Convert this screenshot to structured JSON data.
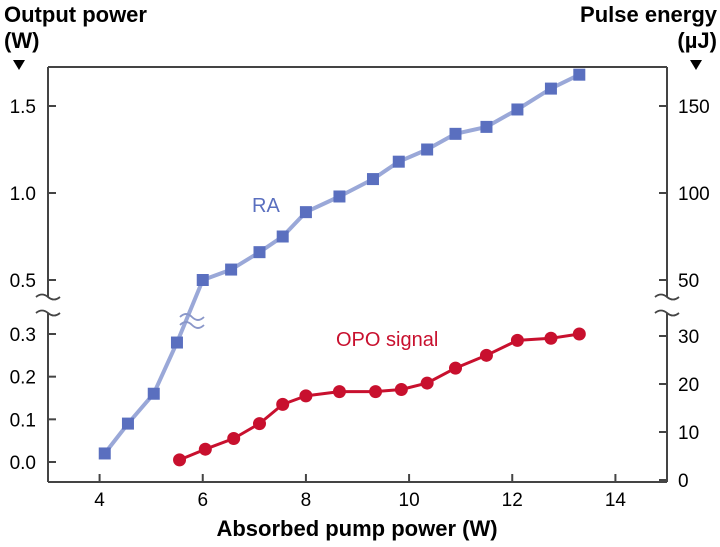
{
  "chart_data": {
    "type": "line",
    "ylabel_left": [
      "Output power",
      "(W)"
    ],
    "ylabel_right": [
      "Pulse energy",
      "(µJ)"
    ],
    "xlabel": "Absorbed pump power (W)",
    "x_ticks": [
      "4",
      "6",
      "8",
      "10",
      "12",
      "14"
    ],
    "xlim": [
      3,
      15
    ],
    "y_left_ticks_lower": [
      "0.0",
      "0.1",
      "0.2",
      "0.3"
    ],
    "y_left_ticks_upper": [
      "0.5",
      "1.0",
      "1.5"
    ],
    "y_right_ticks": [
      "0",
      "10",
      "20",
      "30",
      "50",
      "100",
      "150"
    ],
    "y_axis_break": "between 0.3 W and 0.5 W (≈35 µJ and 50 µJ)",
    "series": [
      {
        "name": "RA",
        "color": "#5a6fbf",
        "line_color": "#9aa8d8",
        "marker": "square",
        "x": [
          4.1,
          4.55,
          5.05,
          5.5,
          6.0,
          6.55,
          7.1,
          7.55,
          8.0,
          8.65,
          9.3,
          9.8,
          10.35,
          10.9,
          11.5,
          12.1,
          12.75,
          13.3
        ],
        "y": [
          0.02,
          0.09,
          0.16,
          0.28,
          0.5,
          0.56,
          0.66,
          0.75,
          0.89,
          0.98,
          1.08,
          1.18,
          1.25,
          1.34,
          1.38,
          1.48,
          1.6,
          1.68
        ]
      },
      {
        "name": "OPO signal",
        "color": "#c8102e",
        "line_color": "#c8102e",
        "marker": "circle",
        "x": [
          5.55,
          6.05,
          6.6,
          7.1,
          7.55,
          8.0,
          8.65,
          9.35,
          9.85,
          10.35,
          10.9,
          11.5,
          12.1,
          12.75,
          13.3
        ],
        "y": [
          0.005,
          0.03,
          0.055,
          0.09,
          0.135,
          0.155,
          0.165,
          0.165,
          0.17,
          0.185,
          0.22,
          0.25,
          0.285,
          0.29,
          0.3
        ]
      }
    ]
  }
}
